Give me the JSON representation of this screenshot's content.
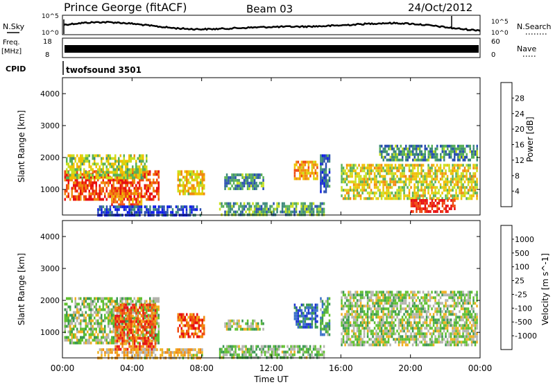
{
  "header": {
    "station": "Prince George (fitACF)",
    "beam": "Beam 03",
    "date": "24/Oct/2012"
  },
  "left_labels": {
    "nsky": "N.Sky",
    "freq": "Freq.",
    "freq_unit": "[MHz]",
    "cpid": "CPID"
  },
  "right_labels": {
    "nsearch": "N.Search",
    "nave": "Nave"
  },
  "cpid_value": "twofsound 3501",
  "colors": {
    "power_scale": [
      "#0a18e6",
      "#2a4fb0",
      "#3d8a7a",
      "#58b058",
      "#c8e020",
      "#f0c000",
      "#f08a10",
      "#f04a10",
      "#e81010"
    ],
    "velocity_scale": [
      "#2038d0",
      "#3a70c8",
      "#3a9850",
      "#60c030",
      "#b4b4ae",
      "#f0b020",
      "#f08a10",
      "#f04a10",
      "#e81010"
    ]
  },
  "chart_data": [
    {
      "type": "line",
      "name": "noise",
      "yticks_left": [
        "10^5",
        "10^0"
      ],
      "yticks_right": [
        "10^5",
        "10^0"
      ]
    },
    {
      "type": "line",
      "name": "frequency",
      "yticks_left": [
        "18",
        "8"
      ],
      "yticks_right": [
        "60",
        "0"
      ]
    },
    {
      "type": "heatmap",
      "name": "power",
      "xlabel": "",
      "ylabel": "Slant Range [km]",
      "xlim": [
        0,
        24
      ],
      "ylim": [
        200,
        4500
      ],
      "yticks": [
        1000,
        2000,
        3000,
        4000
      ],
      "colorbar_label": "Power [dB]",
      "colorbar_ticks": [
        "4",
        "8",
        "12",
        "16",
        "20",
        "24",
        "28"
      ],
      "regions": [
        {
          "t0": 0.1,
          "t1": 5.5,
          "r0": 700,
          "r1": 1600,
          "level": 0.85
        },
        {
          "t0": 0.2,
          "t1": 4.8,
          "r0": 1400,
          "r1": 2100,
          "level": 0.5
        },
        {
          "t0": 2.8,
          "t1": 4.5,
          "r0": 500,
          "r1": 1000,
          "level": 0.75
        },
        {
          "t0": 6.6,
          "t1": 8.1,
          "r0": 900,
          "r1": 1600,
          "level": 0.6
        },
        {
          "t0": 9.3,
          "t1": 11.5,
          "r0": 1000,
          "r1": 1500,
          "level": 0.3
        },
        {
          "t0": 13.3,
          "t1": 14.6,
          "r0": 1300,
          "r1": 1900,
          "level": 0.7
        },
        {
          "t0": 14.8,
          "t1": 15.3,
          "r0": 900,
          "r1": 2100,
          "level": 0.2
        },
        {
          "t0": 16.0,
          "t1": 23.8,
          "r0": 700,
          "r1": 1800,
          "level": 0.55
        },
        {
          "t0": 18.2,
          "t1": 23.8,
          "r0": 1900,
          "r1": 2400,
          "level": 0.3
        },
        {
          "t0": 20.0,
          "t1": 22.5,
          "r0": 300,
          "r1": 700,
          "level": 0.95
        },
        {
          "t0": 2.0,
          "t1": 8.0,
          "r0": 200,
          "r1": 500,
          "level": 0.1
        },
        {
          "t0": 9.0,
          "t1": 15.0,
          "r0": 200,
          "r1": 600,
          "level": 0.35
        }
      ]
    },
    {
      "type": "heatmap",
      "name": "velocity",
      "xlabel": "Time UT",
      "ylabel": "Slant Range [km]",
      "xlim": [
        0,
        24
      ],
      "ylim": [
        200,
        4500
      ],
      "yticks": [
        1000,
        2000,
        3000,
        4000
      ],
      "xticks": [
        "00:00",
        "04:00",
        "08:00",
        "12:00",
        "16:00",
        "20:00",
        "00:00"
      ],
      "colorbar_label": "Velocity [m s^-1]",
      "colorbar_ticks": [
        "-1000",
        "-500",
        "-100",
        "-25",
        "25",
        "100",
        "500",
        "1000"
      ],
      "regions": [
        {
          "t0": 0.1,
          "t1": 5.5,
          "r0": 700,
          "r1": 2100,
          "level": 0.45
        },
        {
          "t0": 3.0,
          "t1": 5.3,
          "r0": 500,
          "r1": 1900,
          "level": 0.82
        },
        {
          "t0": 6.6,
          "t1": 8.1,
          "r0": 900,
          "r1": 1600,
          "level": 0.8
        },
        {
          "t0": 9.3,
          "t1": 11.5,
          "r0": 1100,
          "r1": 1400,
          "level": 0.45
        },
        {
          "t0": 13.3,
          "t1": 14.6,
          "r0": 1200,
          "r1": 1900,
          "level": 0.15
        },
        {
          "t0": 14.8,
          "t1": 15.3,
          "r0": 900,
          "r1": 2100,
          "level": 0.3
        },
        {
          "t0": 16.0,
          "t1": 23.8,
          "r0": 600,
          "r1": 2300,
          "level": 0.45
        },
        {
          "t0": 2.0,
          "t1": 8.0,
          "r0": 200,
          "r1": 500,
          "level": 0.6
        },
        {
          "t0": 9.0,
          "t1": 15.0,
          "r0": 200,
          "r1": 600,
          "level": 0.4
        }
      ]
    }
  ]
}
